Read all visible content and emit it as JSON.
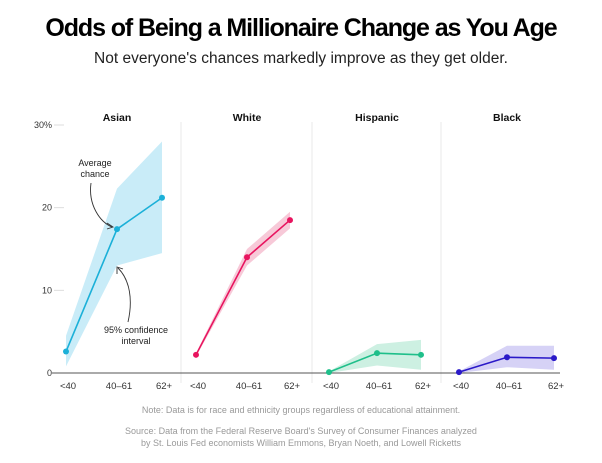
{
  "title": "Odds of Being a Millionaire Change as You Age",
  "subtitle": "Not everyone's chances markedly improve as they get older.",
  "note": "Note: Data is for race and ethnicity groups regardless of educational attainment.",
  "source_line1": "Source: Data from the Federal Reserve Board's Survey of Consumer Finances analyzed",
  "source_line2": "by St. Louis Fed economists William Emmons, Bryan Noeth, and Lowell Ricketts",
  "annotations": {
    "average_line1": "Average",
    "average_line2": "chance",
    "ci_line1": "95% confidence",
    "ci_line2": "interval"
  },
  "chart_data": {
    "type": "line",
    "title": "Odds of Being a Millionaire Change as You Age",
    "ylabel": "",
    "xlabel": "",
    "ylim": [
      0,
      30
    ],
    "yticks": [
      0,
      10,
      20,
      30
    ],
    "ytick_labels": [
      "0",
      "10",
      "20",
      "30%"
    ],
    "categories": [
      "<40",
      "40–61",
      "62+"
    ],
    "grid": false,
    "panels": [
      {
        "name": "Asian",
        "color": "#1bb0d8",
        "band_color": "#c9ecf8",
        "values": [
          2.6,
          17.4,
          21.2
        ],
        "ci_low": [
          0.8,
          13.0,
          14.5
        ],
        "ci_high": [
          4.5,
          22.3,
          28.0
        ]
      },
      {
        "name": "White",
        "color": "#e8145f",
        "band_color": "#f7c9d8",
        "values": [
          2.2,
          14.0,
          18.5
        ],
        "ci_low": [
          2.0,
          13.0,
          17.5
        ],
        "ci_high": [
          2.4,
          15.0,
          19.5
        ]
      },
      {
        "name": "Hispanic",
        "color": "#1fbf8a",
        "band_color": "#cdf0e2",
        "values": [
          0.1,
          2.4,
          2.2
        ],
        "ci_low": [
          0.0,
          0.9,
          0.4
        ],
        "ci_high": [
          0.2,
          3.5,
          4.0
        ]
      },
      {
        "name": "Black",
        "color": "#2a19c8",
        "band_color": "#d6d2f6",
        "values": [
          0.1,
          1.9,
          1.8
        ],
        "ci_low": [
          0.0,
          0.7,
          0.4
        ],
        "ci_high": [
          0.2,
          3.3,
          3.3
        ]
      }
    ]
  }
}
